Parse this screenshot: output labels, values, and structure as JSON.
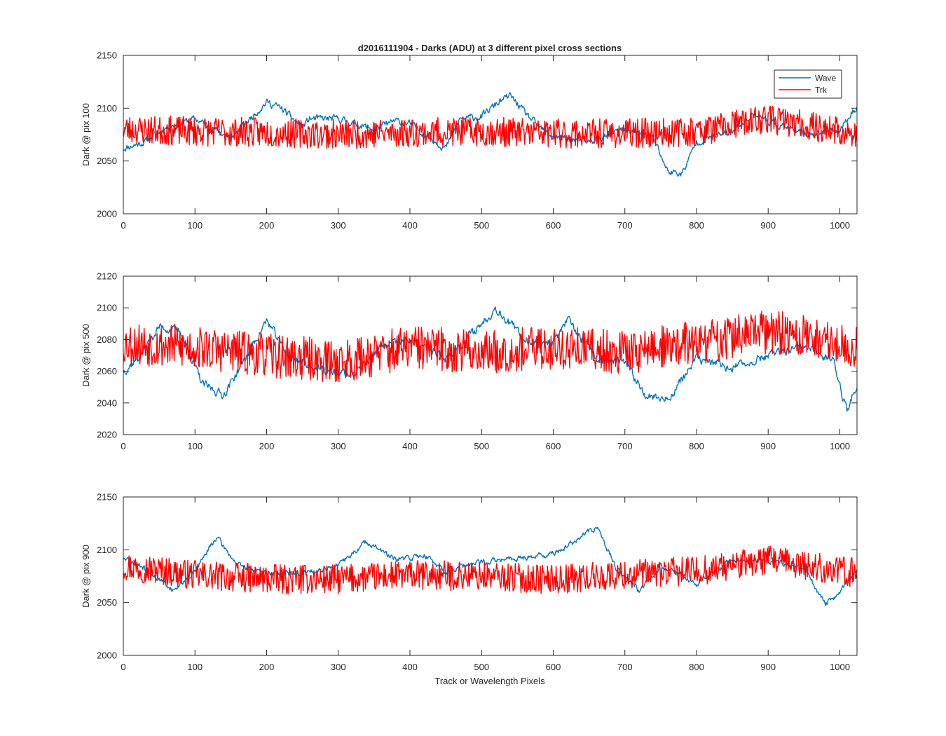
{
  "figure": {
    "title": "d2016111904 - Darks (ADU) at 3 different pixel cross sections",
    "xlabel": "Track or Wavelength Pixels",
    "colors": {
      "wave": "#0072BD",
      "trk": "#FF0000",
      "axis": "#262626"
    }
  },
  "chart_data": [
    {
      "type": "line",
      "title": "d2016111904 - Darks (ADU) at 3 different pixel cross sections",
      "xlabel": "",
      "ylabel": "Dark @ pix 100",
      "xlim": [
        0,
        1024
      ],
      "ylim": [
        2000,
        2150
      ],
      "xticks": [
        0,
        100,
        200,
        300,
        400,
        500,
        600,
        700,
        800,
        900,
        1000
      ],
      "yticks": [
        2000,
        2050,
        2100,
        2150
      ],
      "legend": {
        "placement": "top-right",
        "entries": [
          "Wave",
          "Trk"
        ]
      },
      "grid": false,
      "series": [
        {
          "name": "Wave",
          "color": "#0072BD",
          "noise": 6,
          "seed": 11,
          "x": [
            0,
            30,
            60,
            100,
            150,
            180,
            200,
            220,
            250,
            260,
            300,
            350,
            380,
            400,
            450,
            470,
            500,
            520,
            540,
            560,
            580,
            600,
            650,
            700,
            740,
            760,
            780,
            800,
            850,
            880,
            900,
            950,
            1000,
            1024
          ],
          "y": [
            2062,
            2068,
            2082,
            2090,
            2072,
            2092,
            2106,
            2100,
            2082,
            2090,
            2090,
            2080,
            2088,
            2085,
            2062,
            2090,
            2092,
            2104,
            2112,
            2096,
            2082,
            2073,
            2068,
            2080,
            2072,
            2040,
            2038,
            2068,
            2078,
            2095,
            2088,
            2075,
            2080,
            2102
          ]
        },
        {
          "name": "Trk",
          "color": "#FF0000",
          "noise": 14,
          "seed": 23,
          "x": [
            0,
            100,
            200,
            300,
            400,
            500,
            600,
            700,
            800,
            900,
            1000,
            1024
          ],
          "y": [
            2080,
            2078,
            2077,
            2075,
            2077,
            2078,
            2076,
            2076,
            2078,
            2090,
            2078,
            2072
          ]
        }
      ]
    },
    {
      "type": "line",
      "ylabel": "Dark @ pix 500",
      "xlabel": "",
      "xlim": [
        0,
        1024
      ],
      "ylim": [
        2020,
        2120
      ],
      "xticks": [
        0,
        100,
        200,
        300,
        400,
        500,
        600,
        700,
        800,
        900,
        1000
      ],
      "yticks": [
        2020,
        2040,
        2060,
        2080,
        2100,
        2120
      ],
      "grid": false,
      "series": [
        {
          "name": "Wave",
          "color": "#0072BD",
          "noise": 5,
          "seed": 37,
          "x": [
            0,
            20,
            50,
            80,
            110,
            140,
            170,
            200,
            230,
            280,
            320,
            360,
            400,
            450,
            500,
            520,
            560,
            600,
            620,
            660,
            700,
            730,
            760,
            800,
            850,
            900,
            950,
            990,
            1010,
            1024
          ],
          "y": [
            2060,
            2068,
            2088,
            2085,
            2052,
            2045,
            2068,
            2092,
            2070,
            2060,
            2058,
            2075,
            2080,
            2068,
            2090,
            2100,
            2080,
            2078,
            2092,
            2068,
            2065,
            2045,
            2042,
            2068,
            2062,
            2070,
            2075,
            2068,
            2035,
            2052
          ]
        },
        {
          "name": "Trk",
          "color": "#FF0000",
          "noise": 14,
          "seed": 53,
          "x": [
            0,
            100,
            200,
            300,
            400,
            500,
            600,
            700,
            800,
            900,
            1000,
            1024
          ],
          "y": [
            2078,
            2075,
            2070,
            2066,
            2075,
            2072,
            2075,
            2072,
            2078,
            2085,
            2078,
            2074
          ]
        }
      ]
    },
    {
      "type": "line",
      "ylabel": "Dark @ pix 900",
      "xlabel": "Track or Wavelength Pixels",
      "xlim": [
        0,
        1024
      ],
      "ylim": [
        2000,
        2150
      ],
      "xticks": [
        0,
        100,
        200,
        300,
        400,
        500,
        600,
        700,
        800,
        900,
        1000
      ],
      "yticks": [
        2000,
        2050,
        2100,
        2150
      ],
      "grid": false,
      "series": [
        {
          "name": "Wave",
          "color": "#0072BD",
          "noise": 5,
          "seed": 71,
          "x": [
            0,
            30,
            70,
            100,
            130,
            160,
            200,
            250,
            300,
            340,
            380,
            420,
            450,
            500,
            550,
            600,
            640,
            660,
            690,
            720,
            750,
            800,
            850,
            900,
            950,
            980,
            1000,
            1024
          ],
          "y": [
            2092,
            2082,
            2062,
            2080,
            2112,
            2085,
            2078,
            2078,
            2085,
            2108,
            2090,
            2095,
            2080,
            2088,
            2092,
            2096,
            2112,
            2122,
            2080,
            2062,
            2085,
            2068,
            2090,
            2090,
            2082,
            2048,
            2060,
            2080
          ]
        },
        {
          "name": "Trk",
          "color": "#FF0000",
          "noise": 14,
          "seed": 97,
          "x": [
            0,
            100,
            200,
            300,
            400,
            500,
            600,
            700,
            800,
            900,
            1000,
            1024
          ],
          "y": [
            2085,
            2076,
            2072,
            2072,
            2076,
            2075,
            2072,
            2076,
            2080,
            2090,
            2080,
            2078
          ]
        }
      ]
    }
  ]
}
